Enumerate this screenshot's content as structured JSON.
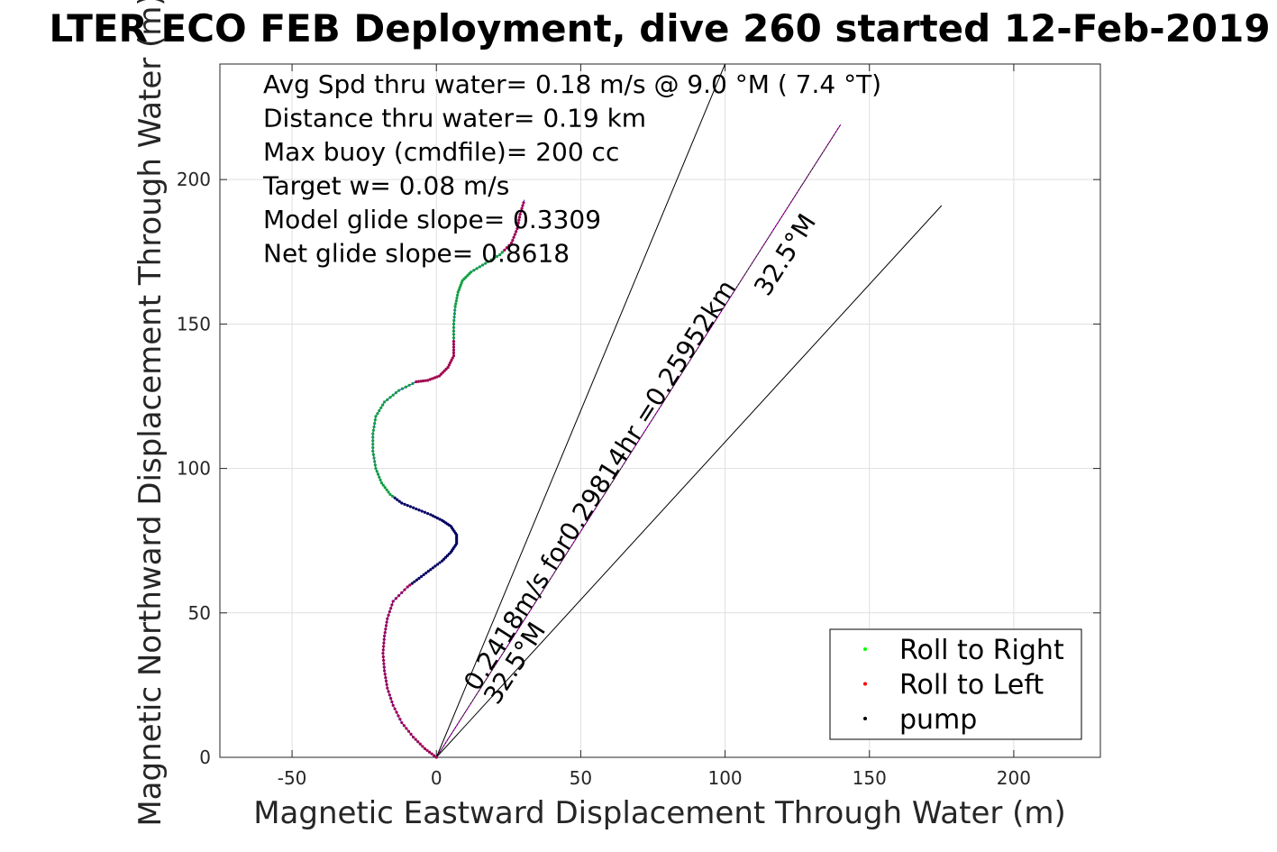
{
  "chart_data": {
    "type": "line",
    "title": "LTER ECO FEB Deployment, dive 260 started 12-Feb-2019",
    "xlabel": "Magnetic Eastward Displacement Through Water (m)",
    "ylabel": "Magnetic Northward Displacement Through Water (m)",
    "xlim": [
      -75,
      230
    ],
    "ylim": [
      0,
      240
    ],
    "xticks": [
      -50,
      0,
      50,
      100,
      150,
      200
    ],
    "yticks": [
      0,
      50,
      100,
      150,
      200
    ],
    "grid": true,
    "info_lines": [
      "Avg Spd thru water=  0.18 m/s @   9.0 °M (  7.4 °T)",
      "Distance thru water=  0.19 km",
      "Max buoy (cmdfile)= 200 cc",
      "Target w= 0.08 m/s",
      "Model glide slope= 0.3309",
      "Net glide slope= 0.8618"
    ],
    "annotations": {
      "along_line": "0.2418m/s for0.29814hr =0.25952km",
      "heading_upper": "32.5°M",
      "heading_lower": "32.5°M"
    },
    "reference_lines": [
      {
        "name": "left-bound",
        "from": [
          0,
          0
        ],
        "to": [
          100,
          240
        ]
      },
      {
        "name": "center",
        "from": [
          0,
          0
        ],
        "to": [
          140,
          219
        ]
      },
      {
        "name": "right-bound",
        "from": [
          0,
          0
        ],
        "to": [
          175,
          191
        ]
      }
    ],
    "track": [
      [
        0,
        0
      ],
      [
        -4,
        3
      ],
      [
        -8,
        7
      ],
      [
        -12,
        12
      ],
      [
        -15,
        18
      ],
      [
        -17,
        24
      ],
      [
        -18,
        30
      ],
      [
        -18.5,
        36
      ],
      [
        -18,
        42
      ],
      [
        -17,
        48
      ],
      [
        -15,
        54
      ],
      [
        -10,
        59
      ],
      [
        -6,
        62
      ],
      [
        -2,
        65
      ],
      [
        2,
        68
      ],
      [
        5,
        71
      ],
      [
        7,
        74
      ],
      [
        7,
        77
      ],
      [
        5,
        80
      ],
      [
        2,
        82
      ],
      [
        -2,
        84
      ],
      [
        -7,
        86
      ],
      [
        -12,
        88
      ],
      [
        -16,
        91
      ],
      [
        -19,
        95
      ],
      [
        -21,
        100
      ],
      [
        -22,
        106
      ],
      [
        -22,
        112
      ],
      [
        -21,
        118
      ],
      [
        -18,
        123
      ],
      [
        -13,
        127
      ],
      [
        -7,
        130
      ],
      [
        -3,
        130.5
      ],
      [
        1,
        132
      ],
      [
        4,
        135
      ],
      [
        6,
        139
      ],
      [
        6,
        144
      ],
      [
        6,
        150
      ],
      [
        6.5,
        156
      ],
      [
        7.5,
        161
      ],
      [
        9,
        165
      ],
      [
        12,
        168
      ],
      [
        17,
        171
      ],
      [
        22,
        174
      ],
      [
        26,
        178
      ],
      [
        28,
        183
      ],
      [
        29,
        188
      ],
      [
        30.5,
        193
      ]
    ],
    "series": [
      {
        "name": "Roll to Right",
        "color": "#00ff00"
      },
      {
        "name": "Roll to Left",
        "color": "#ff0000"
      },
      {
        "name": "pump",
        "color": "#000000"
      }
    ],
    "legend": "bottom-right",
    "colors": {
      "track": "#1a1aff",
      "center_line": "#cc00cc"
    }
  }
}
